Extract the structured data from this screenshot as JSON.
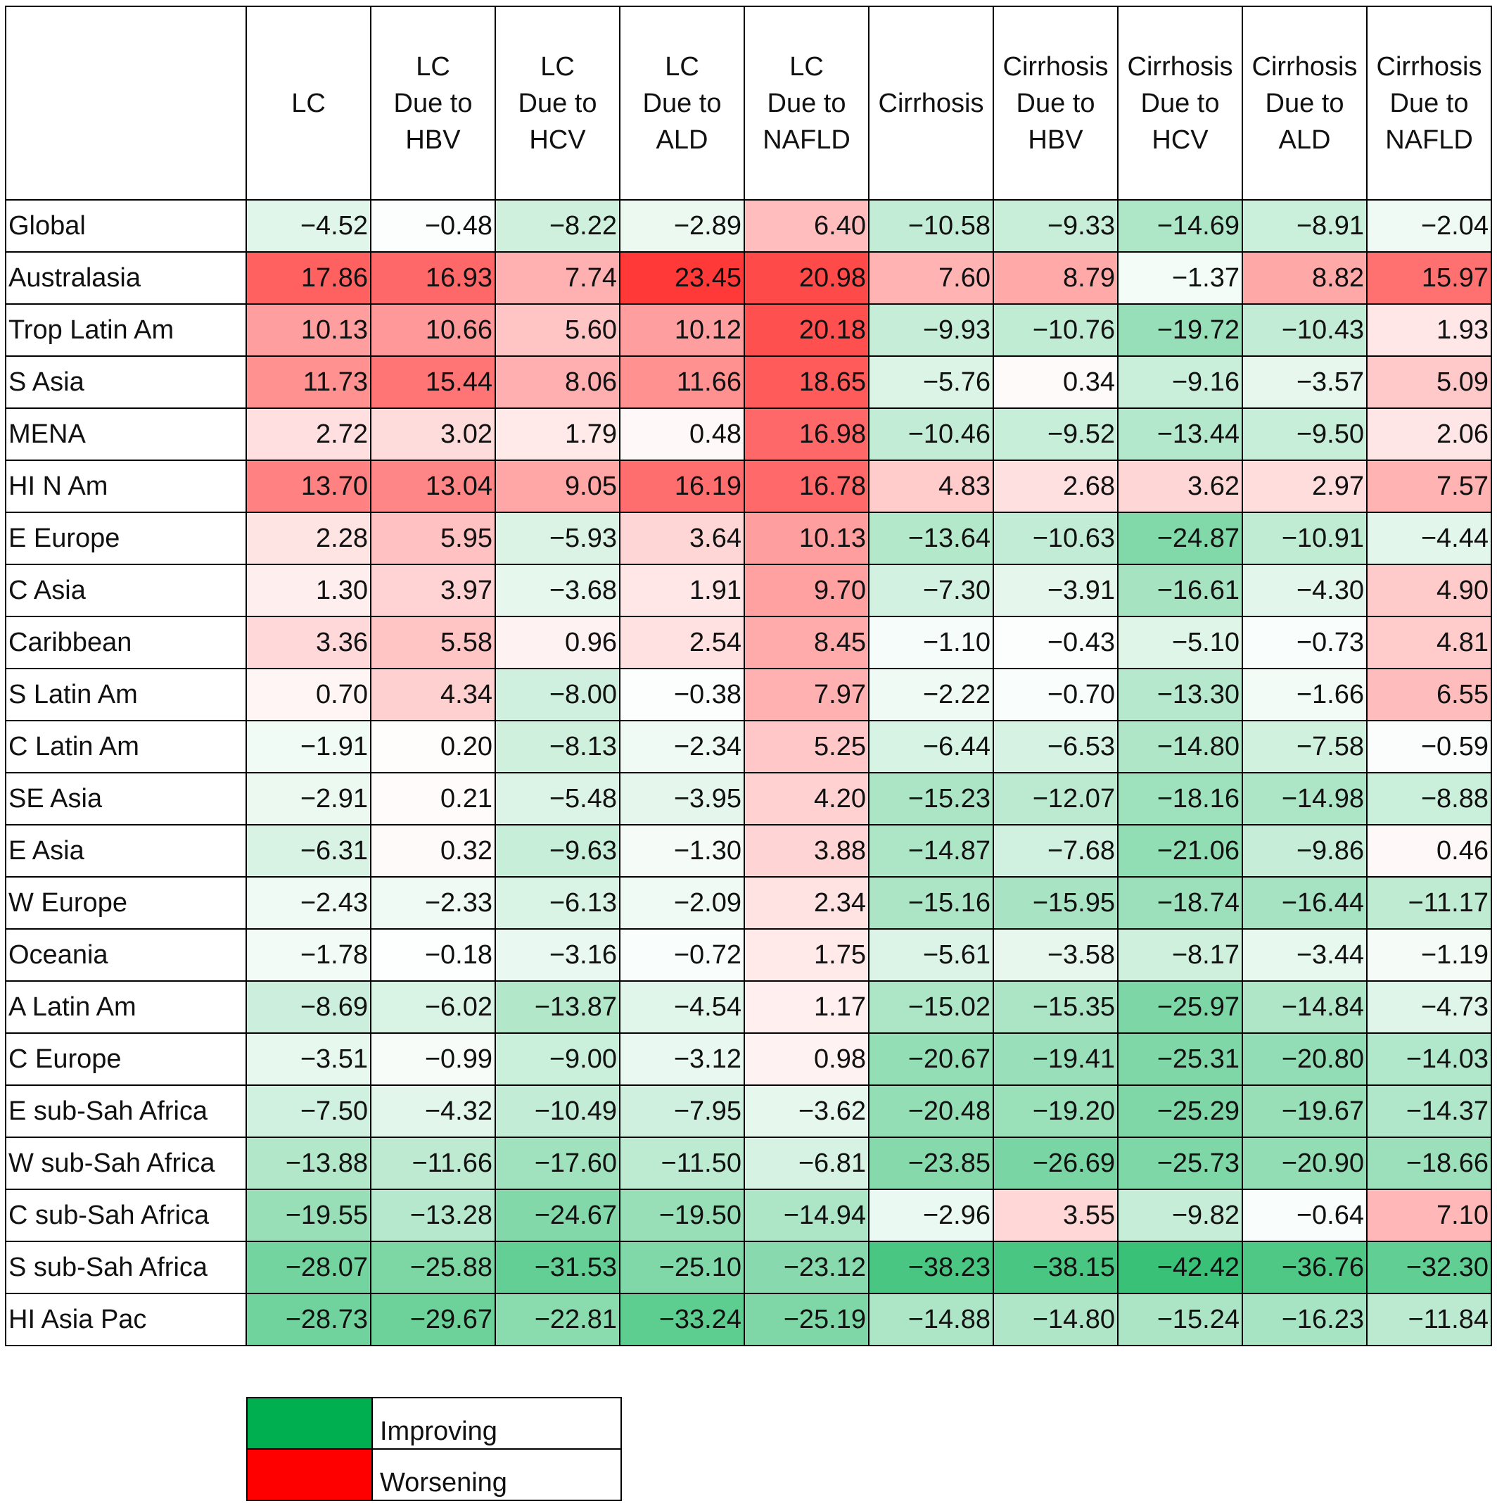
{
  "chart_data": {
    "type": "heatmap",
    "columns": [
      "LC",
      "LC\nDue to\nHBV",
      "LC\nDue to\nHCV",
      "LC\nDue to\nALD",
      "LC\nDue to\nNAFLD",
      "Cirrhosis",
      "Cirrhosis\nDue to\nHBV",
      "Cirrhosis\nDue to\nHCV",
      "Cirrhosis\nDue to\nALD",
      "Cirrhosis\nDue to\nNAFLD"
    ],
    "rows": [
      {
        "label": "Global",
        "values": [
          -4.52,
          -0.48,
          -8.22,
          -2.89,
          6.4,
          -10.58,
          -9.33,
          -14.69,
          -8.91,
          -2.04
        ]
      },
      {
        "label": "Australasia",
        "values": [
          17.86,
          16.93,
          7.74,
          23.45,
          20.98,
          7.6,
          8.79,
          -1.37,
          8.82,
          15.97
        ]
      },
      {
        "label": "Trop Latin Am",
        "values": [
          10.13,
          10.66,
          5.6,
          10.12,
          20.18,
          -9.93,
          -10.76,
          -19.72,
          -10.43,
          1.93
        ]
      },
      {
        "label": "S Asia",
        "values": [
          11.73,
          15.44,
          8.06,
          11.66,
          18.65,
          -5.76,
          0.34,
          -9.16,
          -3.57,
          5.09
        ]
      },
      {
        "label": "MENA",
        "values": [
          2.72,
          3.02,
          1.79,
          0.48,
          16.98,
          -10.46,
          -9.52,
          -13.44,
          -9.5,
          2.06
        ]
      },
      {
        "label": "HI N Am",
        "values": [
          13.7,
          13.04,
          9.05,
          16.19,
          16.78,
          4.83,
          2.68,
          3.62,
          2.97,
          7.57
        ]
      },
      {
        "label": "E Europe",
        "values": [
          2.28,
          5.95,
          -5.93,
          3.64,
          10.13,
          -13.64,
          -10.63,
          -24.87,
          -10.91,
          -4.44
        ]
      },
      {
        "label": "C Asia",
        "values": [
          1.3,
          3.97,
          -3.68,
          1.91,
          9.7,
          -7.3,
          -3.91,
          -16.61,
          -4.3,
          4.9
        ]
      },
      {
        "label": "Caribbean",
        "values": [
          3.36,
          5.58,
          0.96,
          2.54,
          8.45,
          -1.1,
          -0.43,
          -5.1,
          -0.73,
          4.81
        ]
      },
      {
        "label": "S Latin Am",
        "values": [
          0.7,
          4.34,
          -8.0,
          -0.38,
          7.97,
          -2.22,
          -0.7,
          -13.3,
          -1.66,
          6.55
        ]
      },
      {
        "label": "C Latin Am",
        "values": [
          -1.91,
          0.2,
          -8.13,
          -2.34,
          5.25,
          -6.44,
          -6.53,
          -14.8,
          -7.58,
          -0.59
        ]
      },
      {
        "label": "SE Asia",
        "values": [
          -2.91,
          0.21,
          -5.48,
          -3.95,
          4.2,
          -15.23,
          -12.07,
          -18.16,
          -14.98,
          -8.88
        ]
      },
      {
        "label": "E Asia",
        "values": [
          -6.31,
          0.32,
          -9.63,
          -1.3,
          3.88,
          -14.87,
          -7.68,
          -21.06,
          -9.86,
          0.46
        ]
      },
      {
        "label": "W Europe",
        "values": [
          -2.43,
          -2.33,
          -6.13,
          -2.09,
          2.34,
          -15.16,
          -15.95,
          -18.74,
          -16.44,
          -11.17
        ]
      },
      {
        "label": "Oceania",
        "values": [
          -1.78,
          -0.18,
          -3.16,
          -0.72,
          1.75,
          -5.61,
          -3.58,
          -8.17,
          -3.44,
          -1.19
        ]
      },
      {
        "label": "A Latin Am",
        "values": [
          -8.69,
          -6.02,
          -13.87,
          -4.54,
          1.17,
          -15.02,
          -15.35,
          -25.97,
          -14.84,
          -4.73
        ]
      },
      {
        "label": "C Europe",
        "values": [
          -3.51,
          -0.99,
          -9.0,
          -3.12,
          0.98,
          -20.67,
          -19.41,
          -25.31,
          -20.8,
          -14.03
        ]
      },
      {
        "label": "E sub-Sah Africa",
        "values": [
          -7.5,
          -4.32,
          -10.49,
          -7.95,
          -3.62,
          -20.48,
          -19.2,
          -25.29,
          -19.67,
          -14.37
        ]
      },
      {
        "label": "W sub-Sah Africa",
        "values": [
          -13.88,
          -11.66,
          -17.6,
          -11.5,
          -6.81,
          -23.85,
          -26.69,
          -25.73,
          -20.9,
          -18.66
        ]
      },
      {
        "label": "C sub-Sah Africa",
        "values": [
          -19.55,
          -13.28,
          -24.67,
          -19.5,
          -14.94,
          -2.96,
          3.55,
          -9.82,
          -0.64,
          7.1
        ]
      },
      {
        "label": "S sub-Sah Africa",
        "values": [
          -28.07,
          -25.88,
          -31.53,
          -25.1,
          -23.12,
          -38.23,
          -38.15,
          -42.42,
          -36.76,
          -32.3
        ]
      },
      {
        "label": "HI Asia Pac",
        "values": [
          -28.73,
          -29.67,
          -22.81,
          -33.24,
          -25.19,
          -14.88,
          -14.8,
          -15.24,
          -16.23,
          -11.84
        ]
      }
    ],
    "legend": [
      {
        "label": "Improving",
        "color": "#00B050"
      },
      {
        "label": "Worsening",
        "color": "#FF0000"
      }
    ],
    "colors": {
      "improving": "#00B050",
      "worsening": "#FF0000",
      "neutral": "#FFFFFF"
    }
  }
}
